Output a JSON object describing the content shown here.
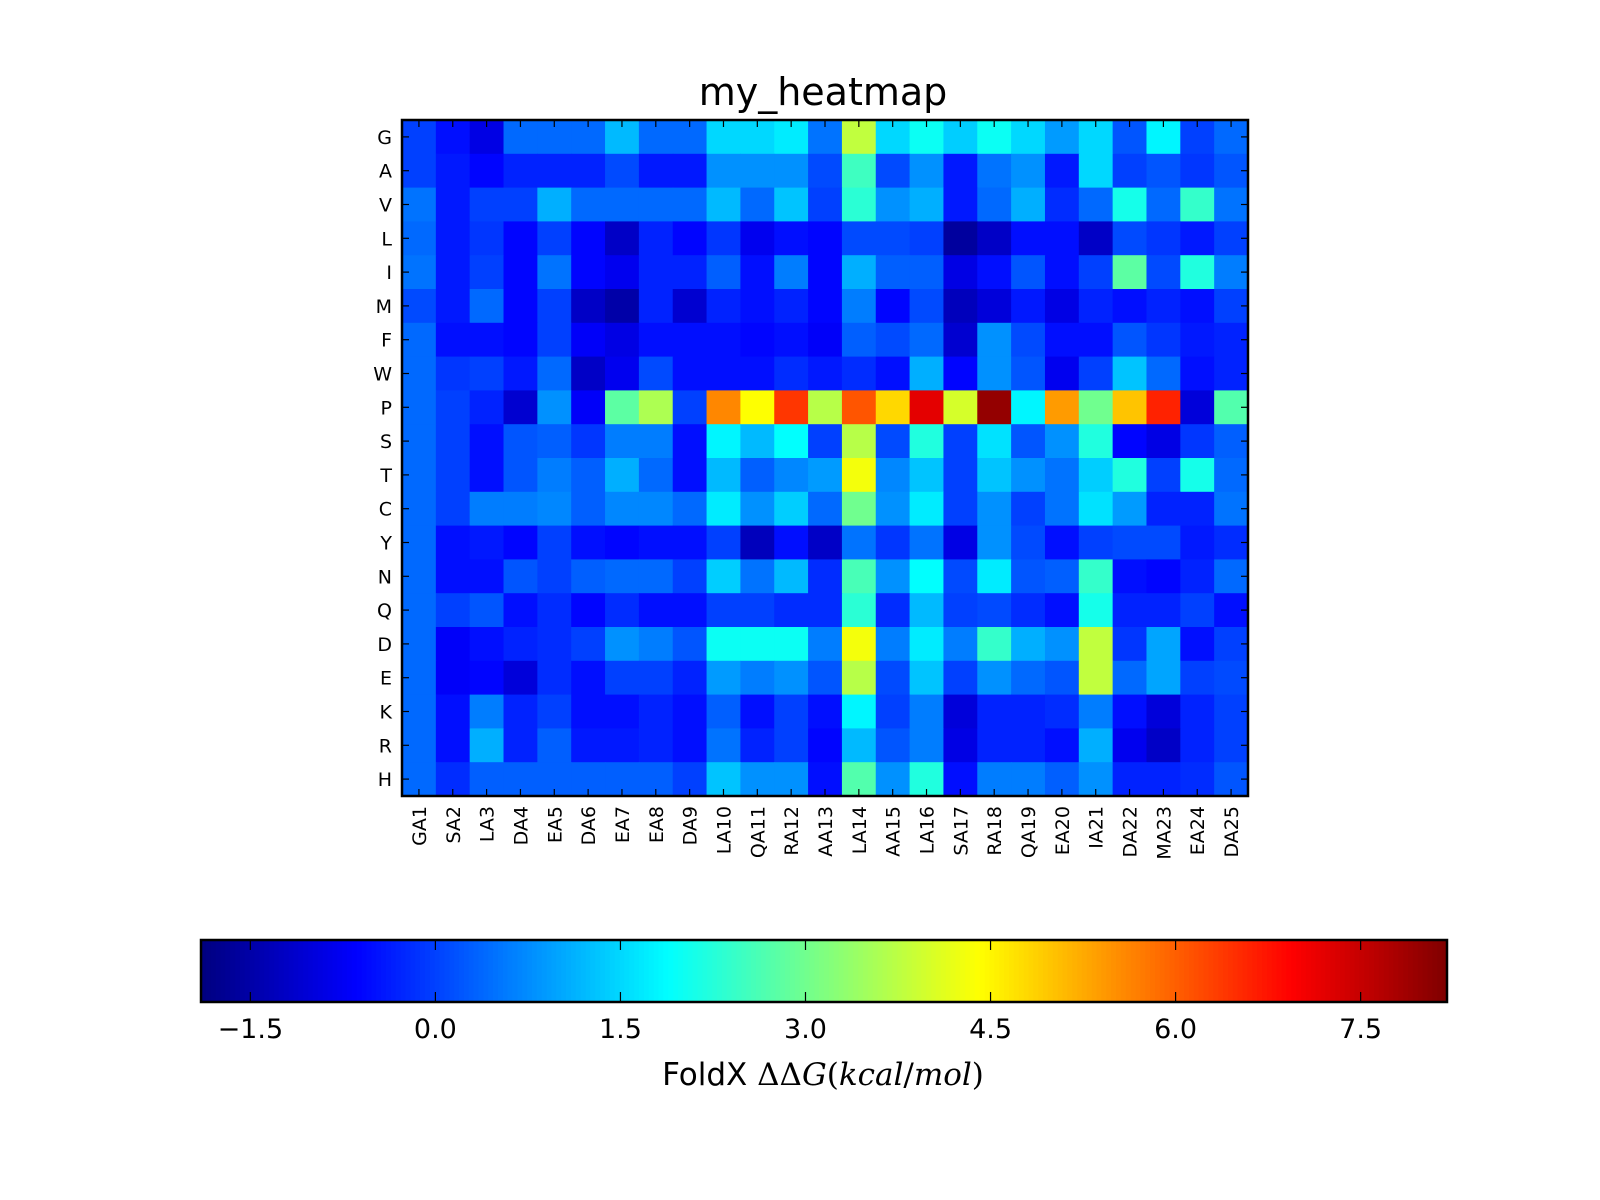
{
  "chart_data": {
    "type": "heatmap",
    "title": "my_heatmap",
    "x_categories": [
      "GA1",
      "SA2",
      "LA3",
      "DA4",
      "EA5",
      "DA6",
      "EA7",
      "EA8",
      "DA9",
      "LA10",
      "QA11",
      "RA12",
      "AA13",
      "LA14",
      "AA15",
      "LA16",
      "SA17",
      "RA18",
      "QA19",
      "EA20",
      "IA21",
      "DA22",
      "MA23",
      "EA24",
      "DA25"
    ],
    "y_categories": [
      "G",
      "A",
      "V",
      "L",
      "I",
      "M",
      "F",
      "W",
      "P",
      "S",
      "T",
      "C",
      "Y",
      "N",
      "Q",
      "D",
      "E",
      "K",
      "R",
      "H"
    ],
    "values": [
      [
        0.0,
        -0.5,
        -0.9,
        0.4,
        0.4,
        0.4,
        1.2,
        0.4,
        0.4,
        1.5,
        1.5,
        1.7,
        0.5,
        3.8,
        1.5,
        2.0,
        1.4,
        2.0,
        1.5,
        0.9,
        1.5,
        0.2,
        1.8,
        0.0,
        0.4
      ],
      [
        0.0,
        -0.4,
        -0.6,
        -0.3,
        -0.3,
        -0.3,
        0.1,
        -0.4,
        -0.4,
        0.8,
        0.8,
        0.8,
        0.1,
        2.5,
        0.1,
        0.8,
        -0.4,
        0.5,
        0.8,
        -0.4,
        1.5,
        0.0,
        0.2,
        -0.1,
        0.2
      ],
      [
        0.5,
        -0.4,
        0.0,
        0.0,
        1.1,
        0.4,
        0.4,
        0.4,
        0.4,
        1.2,
        0.4,
        1.3,
        0.0,
        2.3,
        0.8,
        1.1,
        -0.4,
        0.4,
        1.1,
        -0.2,
        0.4,
        2.1,
        0.4,
        2.4,
        0.5
      ],
      [
        0.4,
        -0.4,
        -0.1,
        -0.6,
        0.0,
        -0.6,
        -1.2,
        -0.3,
        -0.6,
        -0.1,
        -0.8,
        -0.5,
        -0.6,
        0.1,
        0.1,
        0.0,
        -1.6,
        -1.2,
        -0.5,
        -0.5,
        -1.2,
        0.1,
        -0.1,
        -0.4,
        0.0
      ],
      [
        0.5,
        -0.4,
        0.0,
        -0.6,
        0.5,
        -0.6,
        -0.8,
        -0.3,
        -0.3,
        0.3,
        -0.5,
        0.6,
        -0.6,
        1.1,
        0.3,
        0.3,
        -0.9,
        -0.5,
        0.2,
        -0.5,
        0.0,
        2.8,
        0.1,
        2.2,
        0.6
      ],
      [
        0.1,
        -0.4,
        0.4,
        -0.6,
        0.0,
        -1.2,
        -1.5,
        -0.3,
        -1.1,
        -0.3,
        -0.5,
        -0.3,
        -0.6,
        0.6,
        -0.6,
        0.1,
        -1.3,
        -1.0,
        -0.4,
        -0.9,
        -0.3,
        -0.5,
        -0.3,
        -0.5,
        0.0
      ],
      [
        0.4,
        -0.5,
        -0.5,
        -0.6,
        0.0,
        -0.7,
        -0.9,
        -0.5,
        -0.5,
        -0.5,
        -0.6,
        -0.5,
        -0.7,
        0.3,
        0.1,
        0.4,
        -1.1,
        0.8,
        0.1,
        -0.5,
        -0.5,
        0.2,
        -0.1,
        -0.4,
        -0.3
      ],
      [
        0.4,
        -0.1,
        0.0,
        -0.4,
        0.4,
        -1.2,
        -0.8,
        0.1,
        -0.5,
        -0.5,
        -0.5,
        -0.2,
        -0.4,
        -0.2,
        -0.5,
        1.1,
        -0.6,
        0.8,
        0.2,
        -0.8,
        0.0,
        1.3,
        0.4,
        -0.5,
        -0.3
      ],
      [
        0.4,
        0.0,
        -0.3,
        -1.1,
        0.8,
        -0.7,
        2.8,
        3.6,
        0.0,
        5.6,
        4.4,
        6.4,
        3.7,
        6.1,
        4.8,
        7.2,
        4.0,
        8.0,
        1.8,
        5.4,
        3.0,
        5.0,
        6.6,
        -1.0,
        2.7
      ],
      [
        0.4,
        0.0,
        -0.5,
        0.2,
        0.3,
        -0.1,
        0.6,
        0.6,
        -0.5,
        1.8,
        1.2,
        1.9,
        0.0,
        3.7,
        0.1,
        2.2,
        0.0,
        1.6,
        0.2,
        0.8,
        2.2,
        -0.6,
        -0.9,
        -0.1,
        0.3
      ],
      [
        0.4,
        0.0,
        -0.5,
        0.2,
        0.6,
        0.3,
        1.1,
        0.4,
        -0.5,
        1.2,
        0.3,
        0.7,
        0.9,
        4.3,
        0.7,
        1.3,
        0.0,
        1.3,
        0.8,
        0.5,
        1.4,
        2.2,
        0.0,
        2.1,
        0.4
      ],
      [
        0.4,
        0.0,
        0.6,
        0.6,
        0.7,
        0.3,
        0.7,
        0.7,
        0.4,
        1.7,
        0.8,
        1.4,
        0.4,
        3.0,
        0.8,
        1.7,
        0.0,
        0.8,
        0.0,
        0.5,
        1.6,
        0.9,
        -0.3,
        -0.3,
        0.5
      ],
      [
        0.4,
        -0.5,
        -0.4,
        -0.6,
        0.0,
        -0.5,
        -0.6,
        -0.5,
        -0.5,
        0.0,
        -1.3,
        -0.5,
        -1.2,
        0.5,
        -0.1,
        0.5,
        -0.9,
        0.8,
        0.1,
        -0.5,
        0.0,
        0.1,
        0.1,
        -0.4,
        -0.2
      ],
      [
        0.4,
        -0.5,
        -0.5,
        0.2,
        0.0,
        0.3,
        0.4,
        0.4,
        0.0,
        1.4,
        0.5,
        1.2,
        -0.2,
        2.6,
        0.8,
        1.9,
        0.1,
        1.7,
        0.2,
        0.3,
        2.4,
        -0.5,
        -0.6,
        -0.3,
        0.4
      ],
      [
        0.4,
        0.0,
        0.2,
        -0.5,
        -0.2,
        -0.6,
        -0.2,
        -0.5,
        -0.5,
        0.0,
        0.0,
        -0.2,
        -0.2,
        2.3,
        -0.2,
        1.2,
        0.0,
        0.1,
        -0.2,
        -0.5,
        2.1,
        -0.3,
        -0.3,
        0.0,
        -0.5
      ],
      [
        0.4,
        -0.7,
        -0.5,
        -0.3,
        -0.2,
        0.0,
        0.8,
        0.6,
        0.2,
        2.0,
        2.0,
        2.0,
        0.6,
        4.3,
        0.6,
        1.7,
        0.6,
        2.4,
        1.1,
        0.8,
        3.8,
        -0.1,
        1.0,
        -0.5,
        0.0
      ],
      [
        0.4,
        -0.7,
        -0.6,
        -1.0,
        -0.2,
        -0.5,
        0.0,
        0.0,
        -0.3,
        0.9,
        0.6,
        0.8,
        0.2,
        3.7,
        0.1,
        1.3,
        0.0,
        0.8,
        0.4,
        0.2,
        3.8,
        0.4,
        1.0,
        0.0,
        0.1
      ],
      [
        0.4,
        -0.5,
        0.6,
        -0.3,
        0.0,
        -0.5,
        -0.5,
        -0.3,
        -0.5,
        0.3,
        -0.5,
        0.0,
        -0.5,
        1.8,
        0.0,
        0.6,
        -1.0,
        -0.3,
        -0.3,
        -0.2,
        0.6,
        -0.5,
        -1.0,
        -0.3,
        0.0
      ],
      [
        0.4,
        -0.5,
        1.1,
        -0.3,
        0.3,
        -0.4,
        -0.4,
        -0.3,
        -0.5,
        0.5,
        -0.3,
        0.0,
        -0.6,
        1.2,
        0.2,
        0.6,
        -0.9,
        -0.3,
        -0.3,
        -0.5,
        1.1,
        -0.8,
        -1.2,
        -0.3,
        0.0
      ],
      [
        0.4,
        -0.2,
        0.3,
        0.3,
        0.3,
        0.3,
        0.3,
        0.3,
        0.0,
        1.3,
        0.8,
        0.8,
        -0.5,
        2.7,
        0.8,
        2.2,
        -0.5,
        0.6,
        0.6,
        0.3,
        0.8,
        -0.3,
        -0.3,
        -0.2,
        0.2
      ]
    ],
    "colormap": "jet",
    "vmin": -1.9,
    "vmax": 8.2,
    "colorbar": {
      "orientation": "horizontal",
      "ticks": [
        -1.5,
        0.0,
        1.5,
        3.0,
        4.5,
        6.0,
        7.5
      ],
      "tick_labels": [
        "−1.5",
        "0.0",
        "1.5",
        "3.0",
        "4.5",
        "6.0",
        "7.5"
      ],
      "label_prefix": "FoldX ",
      "label_delta": "ΔΔ",
      "label_G": "G",
      "label_open": "(",
      "label_unit_top": "kcal",
      "label_slash": "/",
      "label_unit_bottom": "mol",
      "label_close": ")"
    },
    "grid": false
  }
}
